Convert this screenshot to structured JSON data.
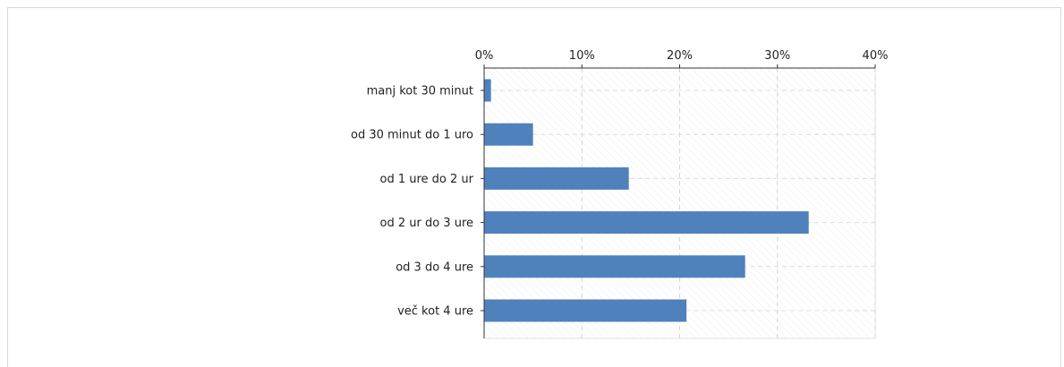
{
  "chart_data": {
    "type": "bar",
    "orientation": "horizontal",
    "categories": [
      "manj kot 30 minut",
      "od 30 minut do 1 uro",
      "od 1 ure do 2 ur",
      "od 2 ur do 3 ure",
      "od 3 do 4 ure",
      "več kot 4 ure"
    ],
    "values": [
      0.7,
      5.0,
      14.8,
      33.2,
      26.7,
      20.7
    ],
    "xlim": [
      0,
      40
    ],
    "ticks": [
      0,
      10,
      20,
      30,
      40
    ],
    "tick_labels": [
      "0%",
      "10%",
      "20%",
      "30%",
      "40%"
    ],
    "x_axis_position": "top",
    "grid": true,
    "bar_color": "#4f81bd",
    "title": "",
    "xlabel": "",
    "ylabel": ""
  }
}
